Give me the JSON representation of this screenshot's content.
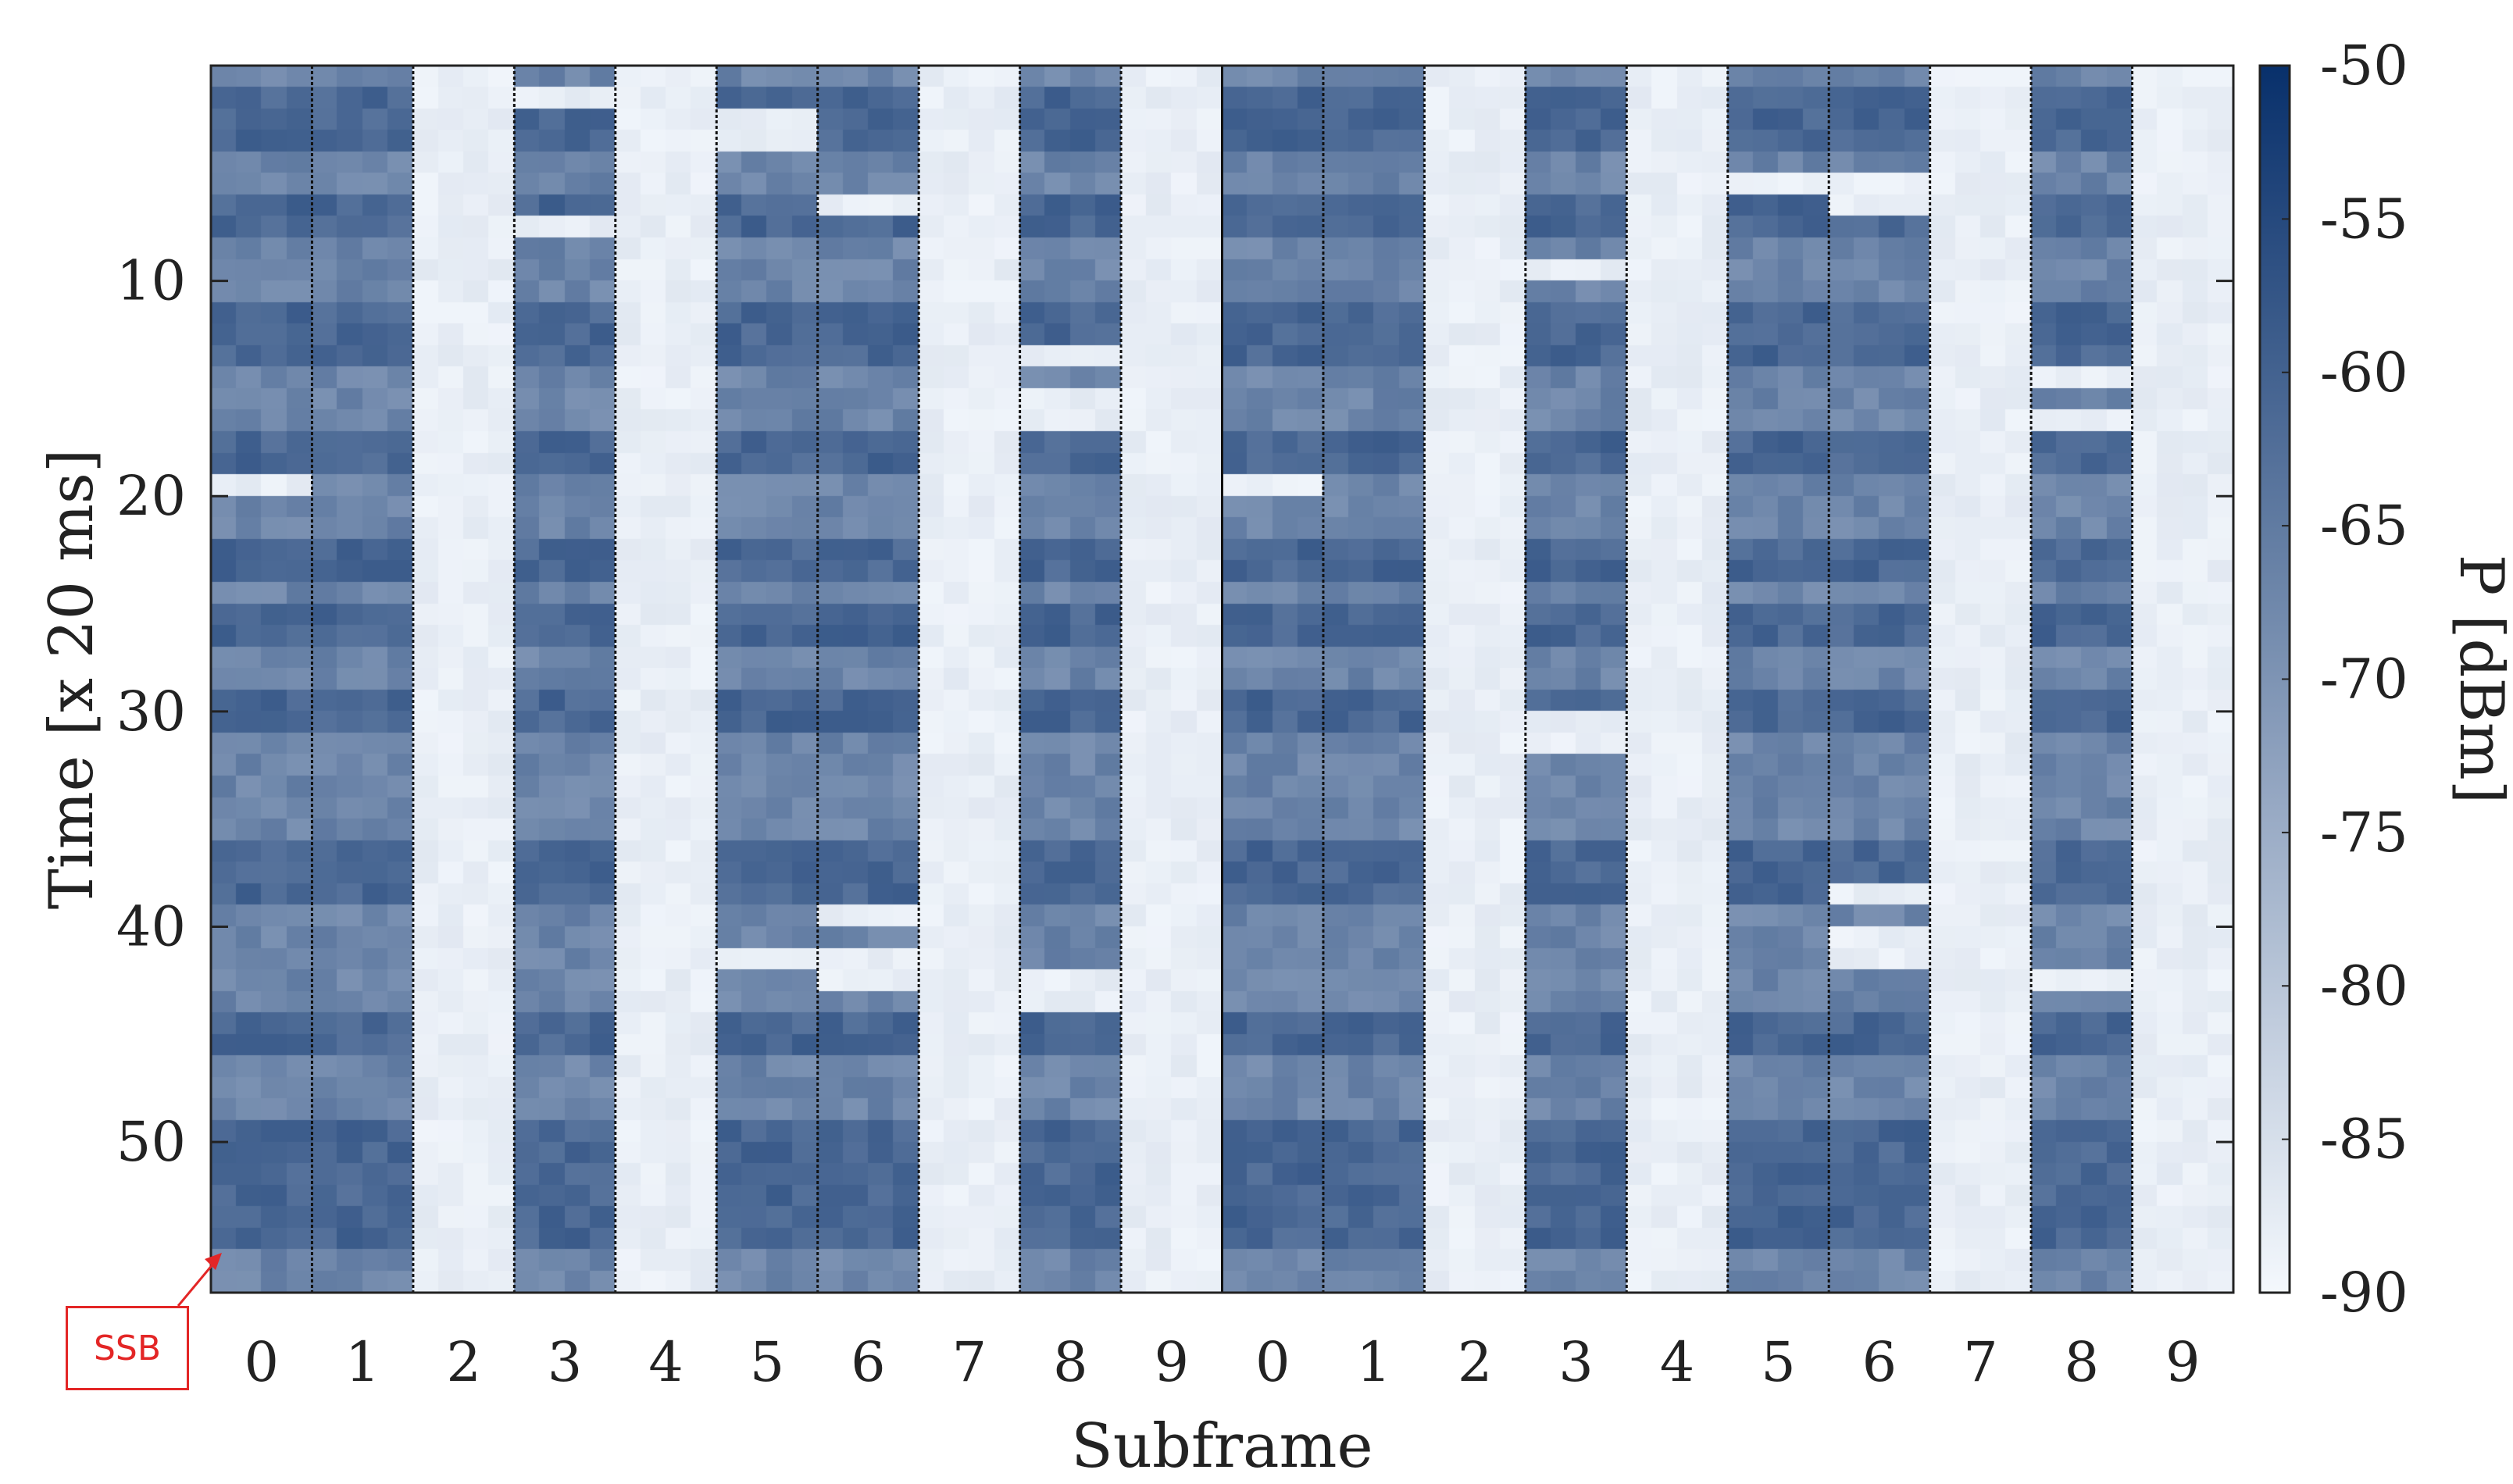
{
  "chart_data": {
    "type": "heatmap",
    "xlabel": "Subframe",
    "ylabel": "Time [x 20 ms]",
    "x_tick_labels": [
      "0",
      "1",
      "2",
      "3",
      "4",
      "5",
      "6",
      "7",
      "8",
      "9",
      "0",
      "1",
      "2",
      "3",
      "4",
      "5",
      "6",
      "7",
      "8",
      "9"
    ],
    "y_ticks": [
      10,
      20,
      30,
      40,
      50
    ],
    "ylim": [
      0,
      57
    ],
    "colorbar": {
      "label": "P [dBm]",
      "range": [
        -90,
        -50
      ],
      "ticks": [
        -50,
        -55,
        -60,
        -65,
        -70,
        -75,
        -80,
        -85,
        -90
      ],
      "colors": [
        "#f4f8fd",
        "#08306b"
      ]
    },
    "subframes": 20,
    "columns_per_subframe": 4,
    "time_rows": 57,
    "empty_subframes": [
      2,
      4,
      7,
      9,
      12,
      14,
      17,
      19
    ],
    "base_level_dBm": -65,
    "empty_level_dBm": -88,
    "strong_rows": [
      1,
      2,
      3,
      6,
      7,
      11,
      12,
      13,
      17,
      18,
      22,
      23,
      25,
      26,
      29,
      30,
      36,
      37,
      38,
      44,
      45,
      49,
      50,
      51,
      52,
      53,
      54
    ],
    "dropouts": [
      {
        "subframe": 0,
        "time": 20
      },
      {
        "subframe": 3,
        "time": 2
      },
      {
        "subframe": 3,
        "time": 8
      },
      {
        "subframe": 5,
        "time": 3
      },
      {
        "subframe": 5,
        "time": 4
      },
      {
        "subframe": 6,
        "time": 7
      },
      {
        "subframe": 5,
        "time": 42
      },
      {
        "subframe": 6,
        "time": 42
      },
      {
        "subframe": 6,
        "time": 40
      },
      {
        "subframe": 6,
        "time": 43
      },
      {
        "subframe": 7,
        "time": 42
      },
      {
        "subframe": 7,
        "time": 43
      },
      {
        "subframe": 8,
        "time": 14
      },
      {
        "subframe": 8,
        "time": 16
      },
      {
        "subframe": 8,
        "time": 17
      },
      {
        "subframe": 8,
        "time": 43
      },
      {
        "subframe": 8,
        "time": 44
      },
      {
        "subframe": 9,
        "time": 20
      },
      {
        "subframe": 10,
        "time": 20
      },
      {
        "subframe": 13,
        "time": 10
      },
      {
        "subframe": 13,
        "time": 31
      },
      {
        "subframe": 13,
        "time": 32
      },
      {
        "subframe": 15,
        "time": 6
      },
      {
        "subframe": 16,
        "time": 6
      },
      {
        "subframe": 16,
        "time": 7
      },
      {
        "subframe": 16,
        "time": 39
      },
      {
        "subframe": 16,
        "time": 41
      },
      {
        "subframe": 16,
        "time": 42
      },
      {
        "subframe": 17,
        "time": 42
      },
      {
        "subframe": 18,
        "time": 15
      },
      {
        "subframe": 18,
        "time": 17
      },
      {
        "subframe": 18,
        "time": 43
      },
      {
        "subframe": 19,
        "time": 16
      }
    ],
    "annotation": "SSB"
  }
}
